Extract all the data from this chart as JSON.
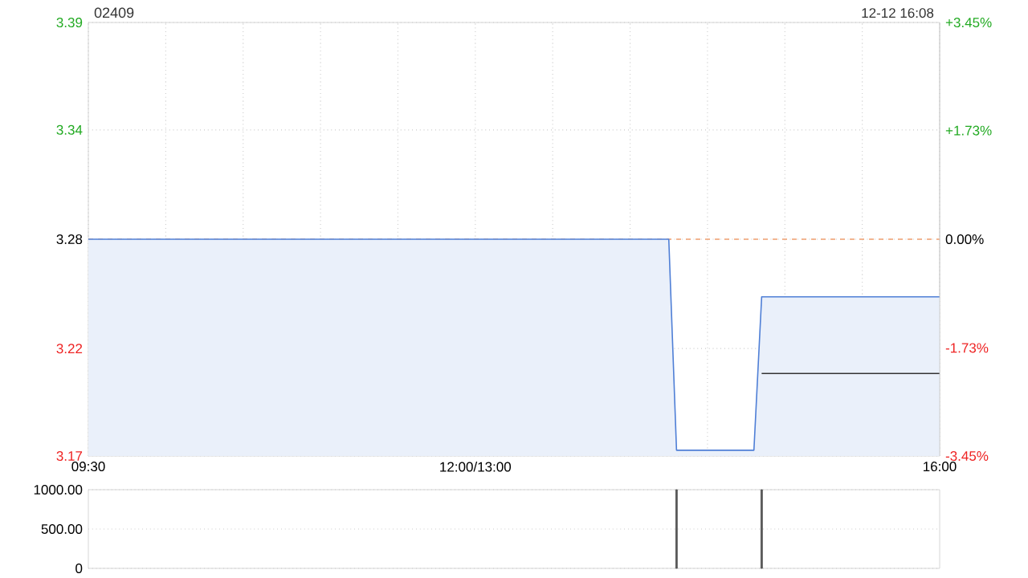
{
  "chart_data": [
    {
      "type": "area",
      "title": "02409",
      "annotations": [
        "12-12 16:08"
      ],
      "categories": [
        "09:30",
        null,
        null,
        null,
        null,
        null,
        null,
        null,
        null,
        null,
        null,
        null,
        null,
        null,
        null,
        null,
        null,
        null,
        null,
        null,
        null,
        null,
        null,
        null,
        null,
        null,
        null,
        null,
        null,
        null,
        null,
        null,
        null,
        null,
        null,
        null,
        null,
        null,
        null,
        null,
        null,
        null,
        null,
        null,
        null,
        null,
        null,
        null,
        null,
        null,
        "12:00/13:00",
        null,
        null,
        null,
        null,
        null,
        null,
        null,
        null,
        null,
        null,
        null,
        null,
        null,
        null,
        null,
        null,
        null,
        null,
        null,
        null,
        null,
        null,
        null,
        null,
        null,
        null,
        null,
        null,
        null,
        null,
        null,
        null,
        null,
        null,
        null,
        null,
        null,
        null,
        null,
        null,
        null,
        null,
        null,
        null,
        null,
        null,
        null,
        null,
        null,
        null,
        null,
        null,
        null,
        null,
        null,
        null,
        null,
        null,
        null,
        "16:00"
      ],
      "ylim": [
        3.167,
        3.393
      ],
      "yticks": [
        {
          "value": 3.393,
          "label": "3.39"
        },
        {
          "value": 3.337,
          "label": "3.34"
        },
        {
          "value": 3.28,
          "label": "3.28"
        },
        {
          "value": 3.223,
          "label": "3.22"
        },
        {
          "value": 3.167,
          "label": "3.17"
        }
      ],
      "y2lim": [
        -3.45,
        3.45
      ],
      "y2ticks": [
        {
          "value": 3.45,
          "label": "+3.45%"
        },
        {
          "value": 1.73,
          "label": "+1.73%"
        },
        {
          "value": 0,
          "label": "0.00%"
        },
        {
          "value": -1.73,
          "label": "-1.73%"
        },
        {
          "value": -3.45,
          "label": "-3.45%"
        }
      ],
      "grid": true,
      "ref_lines": [
        {
          "axis": "y",
          "value": 3.28,
          "color": "#f0a070",
          "line_style": "dashed"
        }
      ],
      "series": [
        {
          "type": "area",
          "color": "#4f7fd6",
          "values": [
            3.28,
            3.28,
            3.28,
            3.28,
            3.28,
            3.28,
            3.28,
            3.28,
            3.28,
            3.28,
            3.28,
            3.28,
            3.28,
            3.28,
            3.28,
            3.28,
            3.28,
            3.28,
            3.28,
            3.28,
            3.28,
            3.28,
            3.28,
            3.28,
            3.28,
            3.28,
            3.28,
            3.28,
            3.28,
            3.28,
            3.28,
            3.28,
            3.28,
            3.28,
            3.28,
            3.28,
            3.28,
            3.28,
            3.28,
            3.28,
            3.28,
            3.28,
            3.28,
            3.28,
            3.28,
            3.28,
            3.28,
            3.28,
            3.28,
            3.28,
            3.28,
            3.28,
            3.28,
            3.28,
            3.28,
            3.28,
            3.28,
            3.28,
            3.28,
            3.28,
            3.28,
            3.28,
            3.28,
            3.28,
            3.28,
            3.28,
            3.28,
            3.28,
            3.28,
            3.28,
            3.28,
            3.28,
            3.28,
            3.28,
            3.28,
            3.28,
            3.17,
            3.17,
            3.17,
            3.17,
            3.17,
            3.17,
            3.17,
            3.17,
            3.17,
            3.17,
            3.17,
            3.25,
            3.25,
            3.25,
            3.25,
            3.25,
            3.25,
            3.25,
            3.25,
            3.25,
            3.25,
            3.25,
            3.25,
            3.25,
            3.25,
            3.25,
            3.25,
            3.25,
            3.25,
            3.25,
            3.25,
            3.25,
            3.25,
            3.25,
            3.25
          ]
        },
        {
          "type": "line",
          "color": "#333333",
          "values": [
            null,
            null,
            null,
            null,
            null,
            null,
            null,
            null,
            null,
            null,
            null,
            null,
            null,
            null,
            null,
            null,
            null,
            null,
            null,
            null,
            null,
            null,
            null,
            null,
            null,
            null,
            null,
            null,
            null,
            null,
            null,
            null,
            null,
            null,
            null,
            null,
            null,
            null,
            null,
            null,
            null,
            null,
            null,
            null,
            null,
            null,
            null,
            null,
            null,
            null,
            null,
            null,
            null,
            null,
            null,
            null,
            null,
            null,
            null,
            null,
            null,
            null,
            null,
            null,
            null,
            null,
            null,
            null,
            null,
            null,
            null,
            null,
            null,
            null,
            null,
            null,
            null,
            null,
            null,
            null,
            null,
            null,
            null,
            null,
            null,
            null,
            null,
            3.21,
            3.21,
            3.21,
            3.21,
            3.21,
            3.21,
            3.21,
            3.21,
            3.21,
            3.21,
            3.21,
            3.21,
            3.21,
            3.21,
            3.21,
            3.21,
            3.21,
            3.21,
            3.21,
            3.21,
            3.21,
            3.21,
            3.21,
            3.21
          ]
        }
      ]
    },
    {
      "type": "bar",
      "ylim": [
        0,
        1000
      ],
      "categories": [
        null,
        null,
        null,
        null,
        null,
        null,
        null,
        null,
        null,
        null,
        null,
        null,
        null,
        null,
        null,
        null,
        null,
        null,
        null,
        null,
        null,
        null,
        null,
        null,
        null,
        null,
        null,
        null,
        null,
        null,
        null,
        null,
        null,
        null,
        null,
        null,
        null,
        null,
        null,
        null,
        null,
        null,
        null,
        null,
        null,
        null,
        null,
        null,
        null,
        null,
        null,
        null,
        null,
        null,
        null,
        null,
        null,
        null,
        null,
        null,
        null,
        null,
        null,
        null,
        null,
        null,
        null,
        null,
        null,
        null,
        null,
        null,
        null,
        null,
        null,
        null,
        null,
        null,
        null,
        null,
        null,
        null,
        null,
        null,
        null,
        null,
        null,
        null,
        null,
        null,
        null,
        null,
        null,
        null,
        null,
        null,
        null,
        null,
        null,
        null,
        null,
        null,
        null,
        null,
        null,
        null,
        null,
        null,
        null,
        null,
        null
      ],
      "yticks": [
        {
          "value": 1000,
          "label": "1000.00"
        },
        {
          "value": 500,
          "label": "500.00"
        },
        0
      ],
      "tick_labels": "y",
      "grid": "y",
      "series": [
        {
          "color": "#555555",
          "values": [
            null,
            null,
            null,
            null,
            null,
            null,
            null,
            null,
            null,
            null,
            null,
            null,
            null,
            null,
            null,
            null,
            null,
            null,
            null,
            null,
            null,
            null,
            null,
            null,
            null,
            null,
            null,
            null,
            null,
            null,
            null,
            null,
            null,
            null,
            null,
            null,
            null,
            null,
            null,
            null,
            null,
            null,
            null,
            null,
            null,
            null,
            null,
            null,
            null,
            null,
            null,
            null,
            null,
            null,
            null,
            null,
            null,
            null,
            null,
            null,
            null,
            null,
            null,
            null,
            null,
            null,
            null,
            null,
            null,
            null,
            null,
            null,
            null,
            null,
            null,
            null,
            1000,
            null,
            null,
            null,
            null,
            null,
            null,
            null,
            null,
            null,
            null,
            1000,
            null,
            null,
            null,
            null,
            null,
            null,
            null,
            null,
            null,
            null,
            null,
            null,
            null,
            null,
            null,
            null,
            null,
            null,
            null,
            null,
            null,
            null,
            null
          ]
        }
      ]
    }
  ]
}
